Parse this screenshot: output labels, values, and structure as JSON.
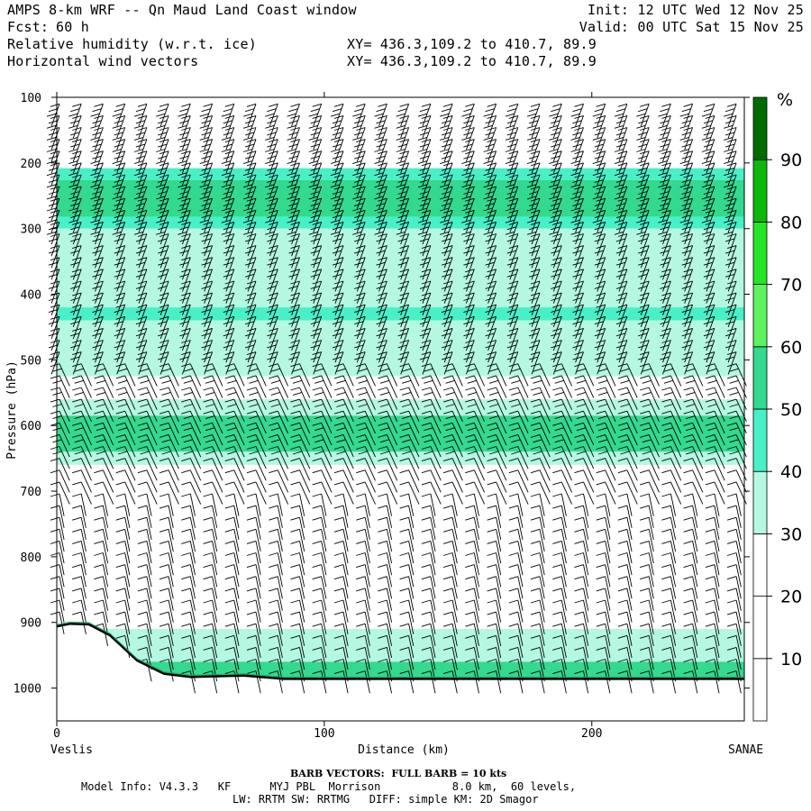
{
  "header": {
    "title": "AMPS 8-km WRF -- Qn Maud Land Coast window",
    "init": "Init: 12 UTC Wed 12 Nov 25",
    "fcst_label": "Fcst:",
    "fcst_value": "60 h",
    "valid": "Valid: 00 UTC Sat 15 Nov 25",
    "field1": "Relative humidity (w.r.t. ice)",
    "field2": "Horizontal wind vectors",
    "xy1": "XY= 436.3,109.2 to 410.7, 89.9",
    "xy2": "XY= 436.3,109.2 to 410.7, 89.9"
  },
  "footer": {
    "barb_note": "BARB VECTORS:  FULL BARB = 10 kts",
    "model_info": "Model Info: V4.3.3   KF      MYJ PBL  Morrison           8.0 km,  60 levels,",
    "model_info2": "LW: RRTM SW: RRTMG   DIFF: simple KM: 2D Smagor"
  },
  "chart_data": {
    "type": "heatmap",
    "title": "Relative humidity (w.r.t. ice)",
    "xlabel": "Distance (km)",
    "ylabel": "Pressure (hPa)",
    "x_ticks": [
      0,
      100,
      200
    ],
    "y_ticks": [
      100,
      200,
      300,
      400,
      500,
      600,
      700,
      800,
      900,
      1000
    ],
    "xlim": [
      0,
      257
    ],
    "ylim": [
      1050,
      100
    ],
    "x_start_label": "Veslis",
    "x_end_label": "SANAE",
    "colorbar": {
      "unit": "%",
      "levels": [
        10,
        20,
        30,
        40,
        50,
        60,
        70,
        80,
        90
      ],
      "colors": [
        "#ffffff",
        "#ffffff",
        "#ffffff",
        "#b4f8e2",
        "#48f0c8",
        "#33d98e",
        "#5ef25e",
        "#26e426",
        "#0cb80c",
        "#006c00"
      ]
    },
    "rh_bands": [
      {
        "from": 108,
        "to": 208,
        "rh": 25
      },
      {
        "from": 208,
        "to": 226,
        "rh": 45
      },
      {
        "from": 226,
        "to": 282,
        "rh": 55
      },
      {
        "from": 282,
        "to": 300,
        "rh": 45
      },
      {
        "from": 300,
        "to": 420,
        "rh": 35
      },
      {
        "from": 420,
        "to": 440,
        "rh": 45
      },
      {
        "from": 440,
        "to": 525,
        "rh": 35
      },
      {
        "from": 525,
        "to": 560,
        "rh": 25
      },
      {
        "from": 560,
        "to": 585,
        "rh": 35
      },
      {
        "from": 585,
        "to": 640,
        "rh": 55
      },
      {
        "from": 640,
        "to": 660,
        "rh": 35
      },
      {
        "from": 660,
        "to": 910,
        "rh": 25
      },
      {
        "from": 910,
        "to": 960,
        "rh": 35
      },
      {
        "from": 960,
        "to": 985,
        "rh": 55
      }
    ],
    "terrain": [
      {
        "x": 0,
        "p": 906
      },
      {
        "x": 5,
        "p": 902
      },
      {
        "x": 12,
        "p": 903
      },
      {
        "x": 20,
        "p": 920
      },
      {
        "x": 30,
        "p": 958
      },
      {
        "x": 40,
        "p": 978
      },
      {
        "x": 50,
        "p": 983
      },
      {
        "x": 70,
        "p": 981
      },
      {
        "x": 85,
        "p": 986
      },
      {
        "x": 150,
        "p": 986
      },
      {
        "x": 257,
        "p": 986
      }
    ],
    "barb_full_kts": 10
  }
}
